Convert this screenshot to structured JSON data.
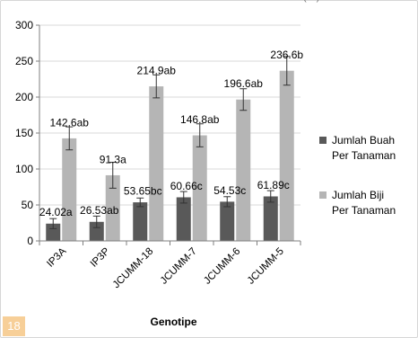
{
  "top_caption": "(…)",
  "page_number": "18",
  "colors": {
    "series_1": "#595959",
    "series_2": "#b5b5b5",
    "gridline": "#d9d9d9",
    "axis": "#7f7f7f",
    "text": "#000000",
    "badge": "#f7cf98"
  },
  "chart_data": {
    "type": "bar",
    "title": "",
    "xlabel": "Genotipe",
    "ylabel": "",
    "ylim": [
      0,
      300
    ],
    "yticks": [
      "0",
      "50",
      "100",
      "150",
      "200",
      "250",
      "300"
    ],
    "grid": "horizontal",
    "legend_position": "right",
    "categories": [
      "IP3A",
      "IP3P",
      "JCUMM-18",
      "JCUMM-7",
      "JCUMM-6",
      "JCUMM-5"
    ],
    "series": [
      {
        "name": "Jumlah Buah Per Tanaman",
        "legend_lines": [
          "Jumlah Buah",
          "Per Tanaman"
        ],
        "values": [
          24.02,
          26.53,
          53.65,
          60.66,
          54.53,
          61.89
        ],
        "errors": [
          7,
          8,
          6,
          8,
          7,
          8
        ],
        "labels": [
          "24.02a",
          "26.53ab",
          "53.65bc",
          "60.66c",
          "54.53c",
          "61.89c"
        ]
      },
      {
        "name": "Jumlah Biji Per Tanaman",
        "legend_lines": [
          "Jumlah Biji",
          "Per Tanaman"
        ],
        "values": [
          142.6,
          91.3,
          214.9,
          146.8,
          196.6,
          236.6
        ],
        "errors": [
          16,
          18,
          16,
          16,
          15,
          20
        ],
        "labels": [
          "142.6ab",
          "91.3a",
          "214.9ab",
          "146.8ab",
          "196.6ab",
          "236.6b"
        ]
      }
    ]
  }
}
